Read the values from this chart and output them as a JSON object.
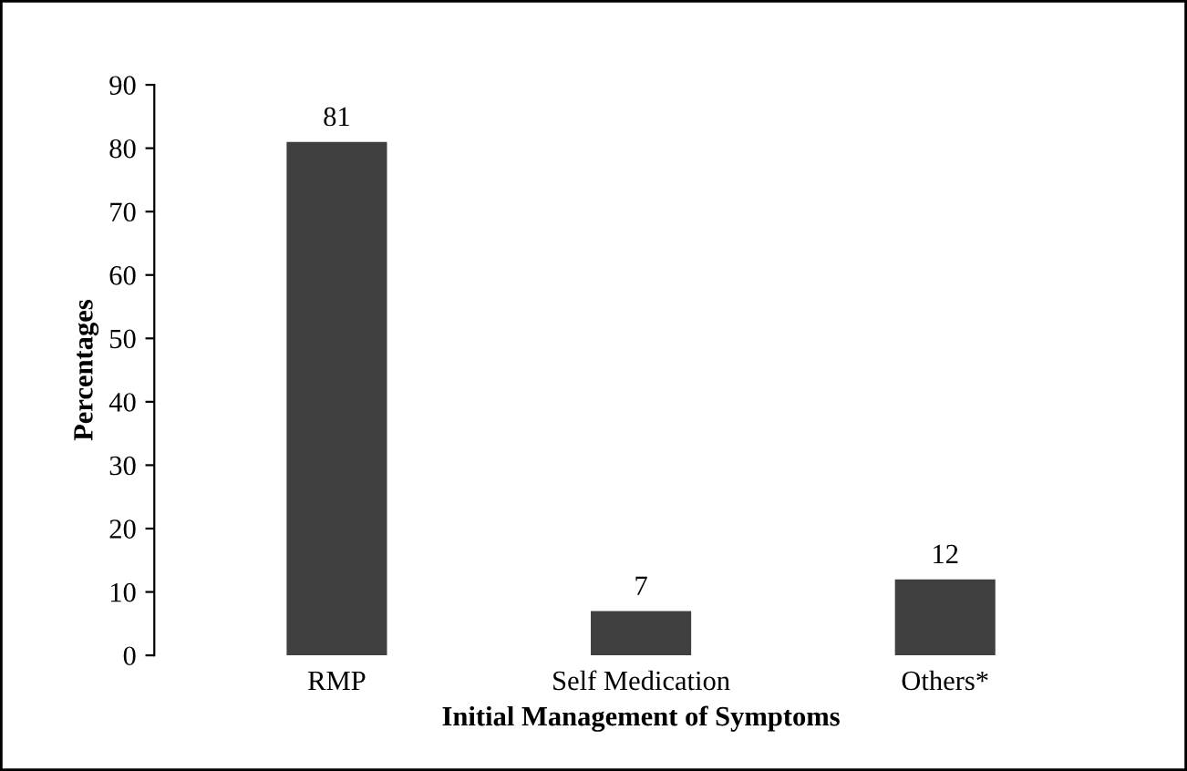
{
  "chart_data": {
    "type": "bar",
    "xlabel": "Initial Management of Symptoms",
    "ylabel": "Percentages",
    "categories": [
      "RMP",
      "Self Medication",
      "Others*"
    ],
    "values": [
      81,
      7,
      12
    ],
    "color": "#404040",
    "ylim": [
      0,
      90
    ],
    "yticks": [
      0,
      10,
      20,
      30,
      40,
      50,
      60,
      70,
      80,
      90
    ],
    "grid": false,
    "data_labels": true
  }
}
